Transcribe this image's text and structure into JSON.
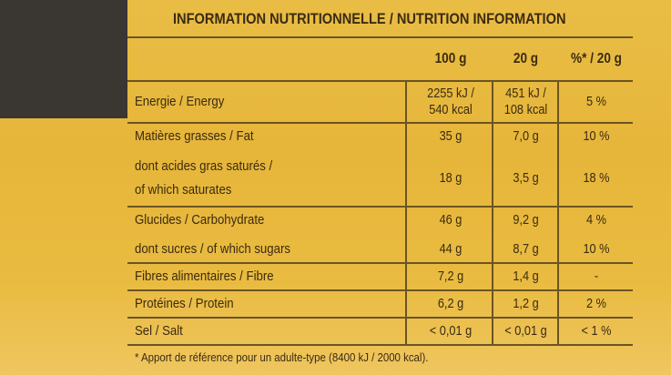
{
  "title": "INFORMATION NUTRITIONNELLE / NUTRITION INFORMATION",
  "table": {
    "columns": [
      "100 g",
      "20 g",
      "%* / 20 g"
    ],
    "rows": [
      {
        "label": [
          "Energie / Energy"
        ],
        "cells": [
          [
            "2255 kJ /",
            "540 kcal"
          ],
          [
            "451 kJ /",
            "108 kcal"
          ],
          [
            "5 %"
          ]
        ]
      },
      {
        "label": [
          "Matières grasses / Fat"
        ],
        "cells": [
          [
            "35 g"
          ],
          [
            "7,0 g"
          ],
          [
            "10 %"
          ]
        ]
      },
      {
        "label": [
          "dont acides gras saturés /",
          "of which saturates"
        ],
        "cells": [
          [
            "18 g"
          ],
          [
            "3,5 g"
          ],
          [
            "18 %"
          ]
        ]
      },
      {
        "label": [
          "Glucides / Carbohydrate"
        ],
        "cells": [
          [
            "46 g"
          ],
          [
            "9,2 g"
          ],
          [
            "4 %"
          ]
        ]
      },
      {
        "label": [
          "dont sucres / of which sugars"
        ],
        "cells": [
          [
            "44 g"
          ],
          [
            "8,7 g"
          ],
          [
            "10 %"
          ]
        ]
      },
      {
        "label": [
          "Fibres alimentaires / Fibre"
        ],
        "cells": [
          [
            "7,2 g"
          ],
          [
            "1,4 g"
          ],
          [
            "-"
          ]
        ]
      },
      {
        "label": [
          "Protéines / Protein"
        ],
        "cells": [
          [
            "6,2 g"
          ],
          [
            "1,2 g"
          ],
          [
            "2 %"
          ]
        ]
      },
      {
        "label": [
          "Sel / Salt"
        ],
        "cells": [
          [
            "< 0,01 g"
          ],
          [
            "< 0,01 g"
          ],
          [
            "< 1 %"
          ]
        ]
      }
    ]
  },
  "footnote": "* Apport de référence pour un adulte-type (8400 kJ / 2000 kcal)."
}
